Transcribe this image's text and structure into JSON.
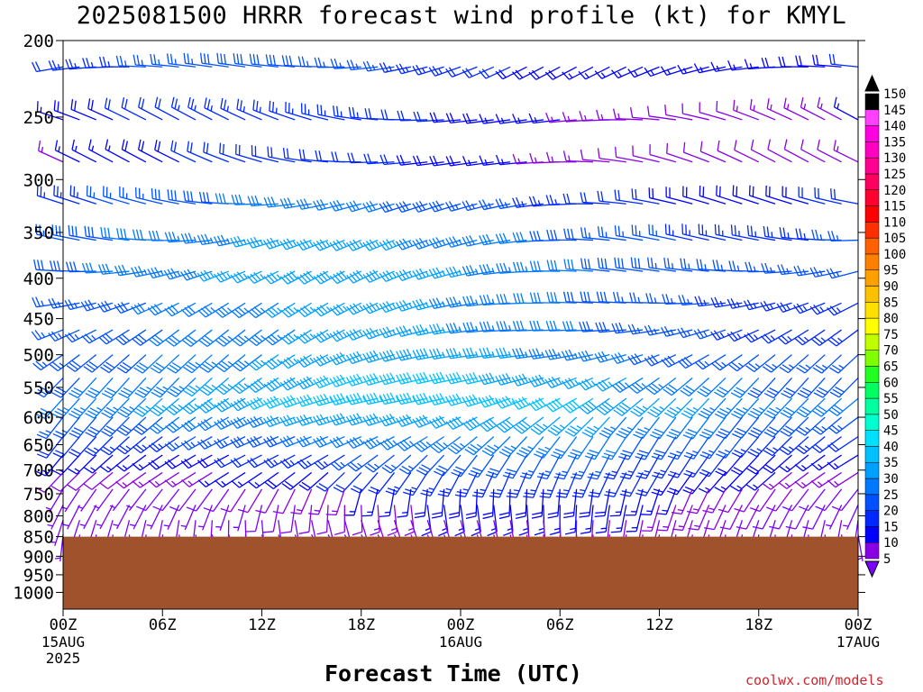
{
  "title": "2025081500 HRRR forecast wind profile (kt) for KMYL",
  "credit": "coolwx.com/models",
  "chart_data": {
    "type": "wind-barb-profile",
    "title": "2025081500 HRRR forecast wind profile (kt) for KMYL",
    "xlabel": "Forecast Time (UTC)",
    "ylabel": "",
    "x_ticks": [
      {
        "hour": 0,
        "label": "00Z",
        "date": "15AUG",
        "year": "2025"
      },
      {
        "hour": 6,
        "label": "06Z",
        "date": "",
        "year": ""
      },
      {
        "hour": 12,
        "label": "12Z",
        "date": "",
        "year": ""
      },
      {
        "hour": 18,
        "label": "18Z",
        "date": "",
        "year": ""
      },
      {
        "hour": 24,
        "label": "00Z",
        "date": "16AUG",
        "year": ""
      },
      {
        "hour": 30,
        "label": "06Z",
        "date": "",
        "year": ""
      },
      {
        "hour": 36,
        "label": "12Z",
        "date": "",
        "year": ""
      },
      {
        "hour": 42,
        "label": "18Z",
        "date": "",
        "year": ""
      },
      {
        "hour": 48,
        "label": "00Z",
        "date": "17AUG",
        "year": ""
      }
    ],
    "xlim": [
      0,
      48
    ],
    "y_ticks": [
      200,
      250,
      300,
      350,
      400,
      450,
      500,
      550,
      600,
      650,
      700,
      750,
      800,
      850,
      900,
      950,
      1000
    ],
    "ylim": [
      200,
      1050
    ],
    "y_scale": "log-pressure",
    "ground_level_hPa": 850,
    "ground_color": "#a0522d",
    "colorbar": {
      "labels": [
        "5",
        "10",
        "15",
        "20",
        "25",
        "30",
        "35",
        "40",
        "45",
        "50",
        "55",
        "60",
        "65",
        "70",
        "75",
        "80",
        "85",
        "90",
        "95",
        "100",
        "105",
        "110",
        "115",
        "120",
        "125",
        "130",
        "135",
        "140",
        "145",
        "150"
      ],
      "colors": [
        "#7a00ff",
        "#8a00e6",
        "#0000ff",
        "#0028ff",
        "#0050ff",
        "#0078ff",
        "#00a0ff",
        "#00c0ff",
        "#00e0ff",
        "#00ffd0",
        "#00ffa0",
        "#00ff60",
        "#20ff20",
        "#80ff00",
        "#c0ff00",
        "#ffff00",
        "#ffe000",
        "#ffc000",
        "#ffa000",
        "#ff8000",
        "#ff6000",
        "#ff3000",
        "#ff0000",
        "#ff0030",
        "#ff0060",
        "#ff0090",
        "#ff00c0",
        "#ff00e0",
        "#ff40ff",
        "#000000"
      ],
      "position": "right"
    },
    "wind_levels": [
      {
        "p": 216,
        "dir": 260,
        "spd": 22
      },
      {
        "p": 252,
        "dir": 280,
        "spd": 18
      },
      {
        "p": 285,
        "dir": 280,
        "spd": 16
      },
      {
        "p": 322,
        "dir": 270,
        "spd": 25
      },
      {
        "p": 358,
        "dir": 265,
        "spd": 30
      },
      {
        "p": 392,
        "dir": 260,
        "spd": 32
      },
      {
        "p": 430,
        "dir": 255,
        "spd": 30
      },
      {
        "p": 465,
        "dir": 250,
        "spd": 30
      },
      {
        "p": 500,
        "dir": 245,
        "spd": 32
      },
      {
        "p": 535,
        "dir": 240,
        "spd": 35
      },
      {
        "p": 568,
        "dir": 240,
        "spd": 38
      },
      {
        "p": 600,
        "dir": 235,
        "spd": 33
      },
      {
        "p": 635,
        "dir": 230,
        "spd": 28
      },
      {
        "p": 670,
        "dir": 225,
        "spd": 22
      },
      {
        "p": 705,
        "dir": 220,
        "spd": 18
      },
      {
        "p": 740,
        "dir": 200,
        "spd": 13
      },
      {
        "p": 775,
        "dir": 190,
        "spd": 11
      },
      {
        "p": 810,
        "dir": 180,
        "spd": 9
      },
      {
        "p": 845,
        "dir": 170,
        "spd": 8
      }
    ],
    "grid": false,
    "legend": "colorbar-right"
  }
}
